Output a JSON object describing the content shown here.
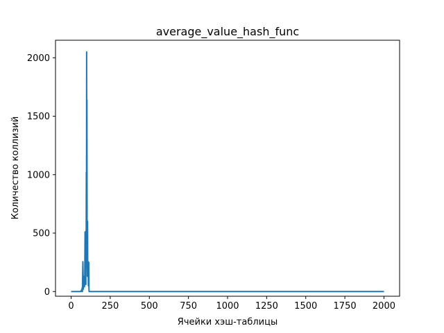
{
  "chart_data": {
    "type": "line",
    "title": "average_value_hash_func",
    "xlabel": "Ячейки хэш-таблицы",
    "ylabel": "Количество коллизий",
    "xlim": [
      -100,
      2100
    ],
    "ylim": [
      -40,
      2150
    ],
    "x_ticks": [
      0,
      250,
      500,
      750,
      1000,
      1250,
      1500,
      1750,
      2000
    ],
    "x_tick_labels": [
      "0",
      "250",
      "500",
      "750",
      "1000",
      "1250",
      "1500",
      "1750",
      "2000"
    ],
    "y_ticks": [
      0,
      500,
      1000,
      1500,
      2000
    ],
    "y_tick_labels": [
      "0",
      "500",
      "1000",
      "1500",
      "2000"
    ],
    "grid": false,
    "series": [
      {
        "color": "#1f77b4",
        "x": [
          0,
          60,
          65,
          68,
          70,
          72,
          75,
          78,
          80,
          83,
          85,
          87,
          89,
          90,
          91,
          92,
          93,
          94,
          95,
          96,
          97,
          98,
          99,
          100,
          101,
          102,
          103,
          104,
          105,
          106,
          107,
          108,
          109,
          110,
          111,
          112,
          113,
          114,
          115,
          116,
          117,
          118,
          120,
          125,
          2000
        ],
        "y": [
          0,
          0,
          10,
          0,
          30,
          0,
          255,
          20,
          130,
          60,
          40,
          130,
          510,
          100,
          500,
          200,
          515,
          60,
          370,
          200,
          1020,
          300,
          2050,
          510,
          1640,
          500,
          510,
          130,
          600,
          240,
          260,
          220,
          255,
          50,
          230,
          130,
          250,
          20,
          0,
          0,
          0,
          0,
          0,
          0,
          0
        ]
      }
    ]
  }
}
